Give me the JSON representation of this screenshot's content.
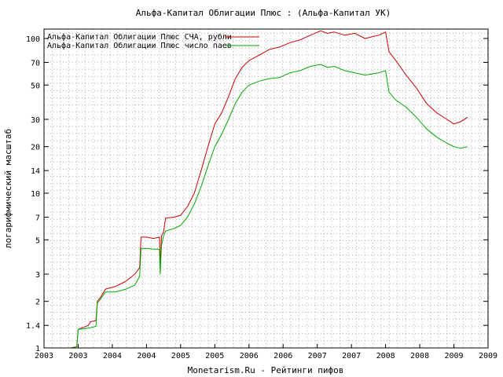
{
  "chart_data": {
    "type": "line",
    "title": "Альфа-Капитал Облигации Плюс : (Альфа-Капитал УК)",
    "xlabel": "Monetarism.Ru - Рейтинги пифов",
    "ylabel": "логарифмический масштаб",
    "y_scale": "log",
    "ylim": [
      1,
      115
    ],
    "xlim": [
      2003.0,
      2009.5
    ],
    "grid": true,
    "legend_position": "top-left",
    "x_tick_labels": [
      "2003",
      "2003",
      "2004",
      "2004",
      "2005",
      "2005",
      "2006",
      "2006",
      "2007",
      "2007",
      "2008",
      "2008",
      "2009",
      "2009"
    ],
    "y_ticks": [
      1,
      1.4,
      2,
      3,
      5,
      7,
      10,
      14,
      20,
      30,
      50,
      70,
      100
    ],
    "y_tick_labels": [
      "1",
      "1.4",
      "2",
      "3",
      "5",
      "7",
      "10",
      "14",
      "20",
      "30",
      "50",
      "70",
      "100"
    ],
    "series": [
      {
        "name": "Альфа-Капитал Облигации Плюс СЧА, рубли",
        "color": "#cc0000",
        "points": [
          [
            2003.4,
            1.0
          ],
          [
            2003.48,
            1.02
          ],
          [
            2003.5,
            1.32
          ],
          [
            2003.58,
            1.36
          ],
          [
            2003.65,
            1.4
          ],
          [
            2003.68,
            1.48
          ],
          [
            2003.76,
            1.5
          ],
          [
            2003.78,
            2.0
          ],
          [
            2003.82,
            2.1
          ],
          [
            2003.9,
            2.4
          ],
          [
            2004.05,
            2.5
          ],
          [
            2004.2,
            2.7
          ],
          [
            2004.33,
            3.0
          ],
          [
            2004.4,
            3.3
          ],
          [
            2004.42,
            5.2
          ],
          [
            2004.5,
            5.2
          ],
          [
            2004.6,
            5.1
          ],
          [
            2004.69,
            5.2
          ],
          [
            2004.7,
            3.4
          ],
          [
            2004.72,
            5.3
          ],
          [
            2004.75,
            5.6
          ],
          [
            2004.78,
            6.9
          ],
          [
            2004.9,
            7.0
          ],
          [
            2005.0,
            7.2
          ],
          [
            2005.1,
            8.2
          ],
          [
            2005.2,
            10.0
          ],
          [
            2005.3,
            14.0
          ],
          [
            2005.4,
            20.0
          ],
          [
            2005.5,
            28.0
          ],
          [
            2005.6,
            33.0
          ],
          [
            2005.7,
            42.0
          ],
          [
            2005.8,
            55.0
          ],
          [
            2005.9,
            65.0
          ],
          [
            2006.0,
            72.0
          ],
          [
            2006.15,
            78.0
          ],
          [
            2006.3,
            85.0
          ],
          [
            2006.45,
            88.0
          ],
          [
            2006.6,
            94.0
          ],
          [
            2006.75,
            98.0
          ],
          [
            2006.9,
            105.0
          ],
          [
            2007.05,
            112.0
          ],
          [
            2007.15,
            108.0
          ],
          [
            2007.25,
            110.0
          ],
          [
            2007.4,
            105.0
          ],
          [
            2007.55,
            108.0
          ],
          [
            2007.7,
            100.0
          ],
          [
            2007.9,
            105.0
          ],
          [
            2008.0,
            110.0
          ],
          [
            2008.05,
            82.0
          ],
          [
            2008.15,
            72.0
          ],
          [
            2008.3,
            58.0
          ],
          [
            2008.45,
            48.0
          ],
          [
            2008.6,
            38.0
          ],
          [
            2008.75,
            33.0
          ],
          [
            2008.9,
            30.0
          ],
          [
            2009.0,
            28.0
          ],
          [
            2009.1,
            29.0
          ],
          [
            2009.2,
            31.0
          ]
        ]
      },
      {
        "name": "Альфа-Капитал Облигации Плюс число паев",
        "color": "#00aa00",
        "points": [
          [
            2003.4,
            1.0
          ],
          [
            2003.48,
            1.02
          ],
          [
            2003.5,
            1.32
          ],
          [
            2003.58,
            1.33
          ],
          [
            2003.68,
            1.35
          ],
          [
            2003.76,
            1.38
          ],
          [
            2003.78,
            1.95
          ],
          [
            2003.82,
            2.05
          ],
          [
            2003.9,
            2.3
          ],
          [
            2004.05,
            2.3
          ],
          [
            2004.2,
            2.4
          ],
          [
            2004.33,
            2.55
          ],
          [
            2004.4,
            2.9
          ],
          [
            2004.42,
            4.4
          ],
          [
            2004.5,
            4.4
          ],
          [
            2004.6,
            4.35
          ],
          [
            2004.69,
            4.35
          ],
          [
            2004.7,
            3.0
          ],
          [
            2004.72,
            4.6
          ],
          [
            2004.75,
            5.3
          ],
          [
            2004.78,
            5.7
          ],
          [
            2004.9,
            5.9
          ],
          [
            2005.0,
            6.2
          ],
          [
            2005.1,
            7.0
          ],
          [
            2005.2,
            8.5
          ],
          [
            2005.3,
            11.0
          ],
          [
            2005.4,
            15.0
          ],
          [
            2005.5,
            20.0
          ],
          [
            2005.6,
            24.0
          ],
          [
            2005.7,
            30.0
          ],
          [
            2005.8,
            38.0
          ],
          [
            2005.9,
            45.0
          ],
          [
            2006.0,
            50.0
          ],
          [
            2006.15,
            53.0
          ],
          [
            2006.3,
            55.0
          ],
          [
            2006.45,
            56.0
          ],
          [
            2006.6,
            60.0
          ],
          [
            2006.75,
            62.0
          ],
          [
            2006.9,
            66.0
          ],
          [
            2007.05,
            68.0
          ],
          [
            2007.15,
            65.0
          ],
          [
            2007.25,
            66.0
          ],
          [
            2007.4,
            62.0
          ],
          [
            2007.55,
            60.0
          ],
          [
            2007.7,
            58.0
          ],
          [
            2007.9,
            60.0
          ],
          [
            2008.0,
            62.0
          ],
          [
            2008.05,
            45.0
          ],
          [
            2008.15,
            40.0
          ],
          [
            2008.3,
            36.0
          ],
          [
            2008.45,
            31.0
          ],
          [
            2008.6,
            26.0
          ],
          [
            2008.75,
            23.0
          ],
          [
            2008.9,
            21.0
          ],
          [
            2009.0,
            20.0
          ],
          [
            2009.1,
            19.5
          ],
          [
            2009.2,
            20.0
          ]
        ]
      }
    ]
  }
}
